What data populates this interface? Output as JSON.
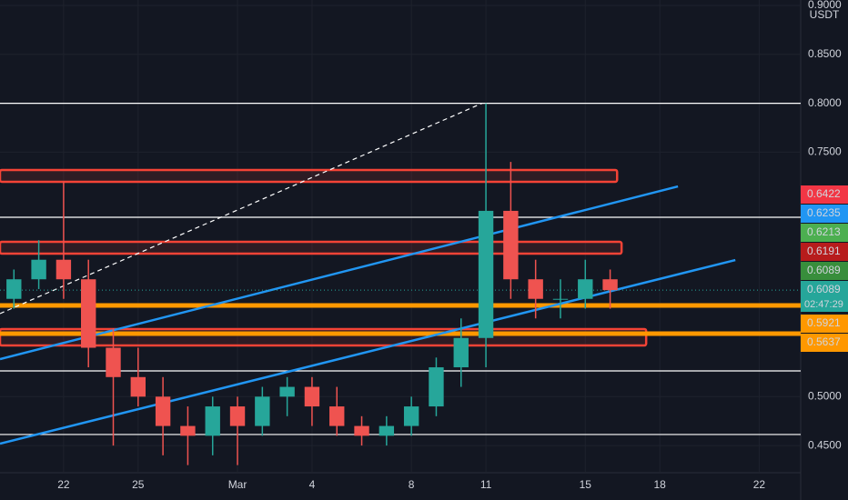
{
  "chart_data": {
    "type": "candlestick",
    "unit": "USDT",
    "x": [
      -2,
      -1,
      0,
      1,
      2,
      3,
      4,
      5,
      6,
      7,
      8,
      9,
      10,
      11,
      12,
      13,
      14,
      15,
      16,
      17,
      18,
      19,
      20,
      21,
      22
    ],
    "open": [
      0.6,
      0.62,
      0.64,
      0.62,
      0.55,
      0.52,
      0.5,
      0.47,
      0.46,
      0.49,
      0.47,
      0.5,
      0.51,
      0.49,
      0.47,
      0.46,
      0.47,
      0.49,
      0.53,
      0.56,
      0.69,
      0.62,
      0.6,
      0.6,
      0.62
    ],
    "high": [
      0.63,
      0.66,
      0.72,
      0.64,
      0.57,
      0.55,
      0.52,
      0.49,
      0.5,
      0.5,
      0.51,
      0.52,
      0.52,
      0.51,
      0.48,
      0.48,
      0.5,
      0.54,
      0.58,
      0.8,
      0.74,
      0.64,
      0.62,
      0.64,
      0.63
    ],
    "low": [
      0.59,
      0.61,
      0.6,
      0.53,
      0.45,
      0.49,
      0.44,
      0.43,
      0.44,
      0.43,
      0.46,
      0.48,
      0.47,
      0.46,
      0.45,
      0.45,
      0.46,
      0.48,
      0.51,
      0.53,
      0.6,
      0.58,
      0.58,
      0.59,
      0.59
    ],
    "close": [
      0.62,
      0.64,
      0.62,
      0.55,
      0.52,
      0.5,
      0.47,
      0.46,
      0.49,
      0.47,
      0.5,
      0.51,
      0.49,
      0.47,
      0.46,
      0.47,
      0.49,
      0.53,
      0.56,
      0.69,
      0.62,
      0.6,
      0.6,
      0.62,
      0.6089
    ],
    "up_color": "#26a69a",
    "down_color": "#ef5350",
    "xlim": [
      -2.56,
      29.67
    ],
    "ylim": [
      0.4222,
      0.9056
    ],
    "xticks": [
      {
        "value": 0,
        "label": "22"
      },
      {
        "value": 3,
        "label": "25"
      },
      {
        "value": 7,
        "label": "Mar"
      },
      {
        "value": 10,
        "label": "4"
      },
      {
        "value": 14,
        "label": "8"
      },
      {
        "value": 17,
        "label": "11"
      },
      {
        "value": 21,
        "label": "15"
      },
      {
        "value": 24,
        "label": "18"
      },
      {
        "value": 28,
        "label": "22"
      }
    ],
    "yticks": [
      {
        "value": 0.45,
        "label": "0.4500"
      },
      {
        "value": 0.5,
        "label": "0.5000"
      },
      {
        "value": 0.75,
        "label": "0.7500"
      },
      {
        "value": 0.8,
        "label": "0.8000"
      },
      {
        "value": 0.85,
        "label": "0.8500"
      },
      {
        "value": 0.9,
        "label": "0.9000"
      }
    ],
    "levels": [
      {
        "price": 0.8,
        "color": "#ffffff",
        "width": 1.2
      },
      {
        "price": 0.6834,
        "color": "#ffffff",
        "width": 1.2
      },
      {
        "price": 0.5263,
        "color": "#ffffff",
        "width": 1.2
      },
      {
        "price": 0.4613,
        "color": "#ffffff",
        "width": 1.2
      },
      {
        "price": 0.5932,
        "color": "#ff9800",
        "width": 5
      },
      {
        "price": 0.5644,
        "color": "#ff9800",
        "width": 5
      }
    ],
    "zones": [
      {
        "top": 0.7318,
        "bottom": 0.7197,
        "end": 22.28,
        "color": "#f44336"
      },
      {
        "top": 0.6583,
        "bottom": 0.6462,
        "end": 22.46,
        "color": "#f44336"
      },
      {
        "top": 0.5691,
        "bottom": 0.5523,
        "end": 23.45,
        "color": "#f44336"
      }
    ],
    "trendlines": [
      {
        "points": [
          [
            -2.56,
            0.5384
          ],
          [
            24.73,
            0.715
          ]
        ],
        "color": "#2196f3",
        "dash": false
      },
      {
        "points": [
          [
            -2.56,
            0.4519
          ],
          [
            27.04,
            0.6397
          ]
        ],
        "color": "#2196f3",
        "dash": false
      },
      {
        "points": [
          [
            -2.56,
            0.5849
          ],
          [
            16.85,
            0.8
          ]
        ],
        "color": "#ffffff",
        "dash": true
      }
    ],
    "last_price": 0.6089,
    "countdown": "02:47:29",
    "price_tags": [
      {
        "value": 0.6422,
        "color": "#f23645"
      },
      {
        "value": 0.6235,
        "color": "#2196f3"
      },
      {
        "value": 0.6213,
        "color": "#4caf50"
      },
      {
        "value": 0.6191,
        "color": "#b71c1c"
      },
      {
        "value": 0.6089,
        "color": "#388e3c"
      },
      {
        "value": 0.6089,
        "color": "#26a69a"
      },
      {
        "value": 0.5921,
        "color": "#ff9800"
      },
      {
        "value": 0.5637,
        "color": "#ff9800"
      }
    ]
  }
}
